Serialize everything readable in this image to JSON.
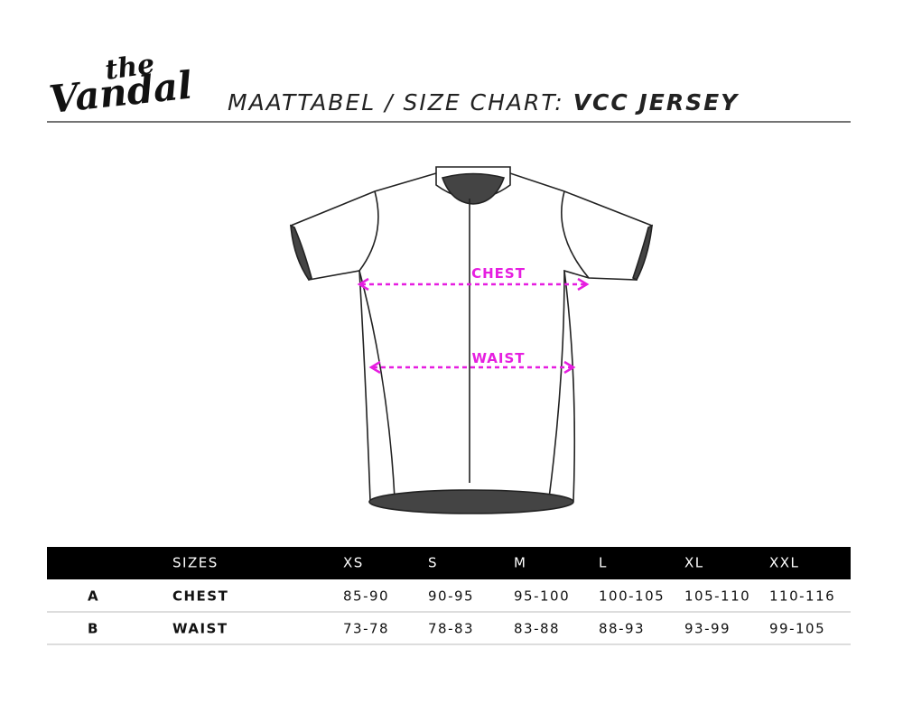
{
  "header": {
    "logo": {
      "top": "the",
      "bottom": "Vandal"
    },
    "title": "MAATTABEL / SIZE CHART:",
    "title_bold": "VCC JERSEY"
  },
  "diagram": {
    "labels": [
      "CHEST",
      "WAIST"
    ]
  },
  "table": {
    "header": [
      "SIZES",
      "XS",
      "S",
      "M",
      "L",
      "XL",
      "XXL"
    ],
    "rows": [
      [
        "A",
        "CHEST",
        "85-90",
        "90-95",
        "95-100",
        "100-105",
        "105-110",
        "110-116"
      ],
      [
        "B",
        "WAIST",
        "73-78",
        "78-83",
        "83-88",
        "88-93",
        "93-99",
        "99-105"
      ]
    ]
  }
}
